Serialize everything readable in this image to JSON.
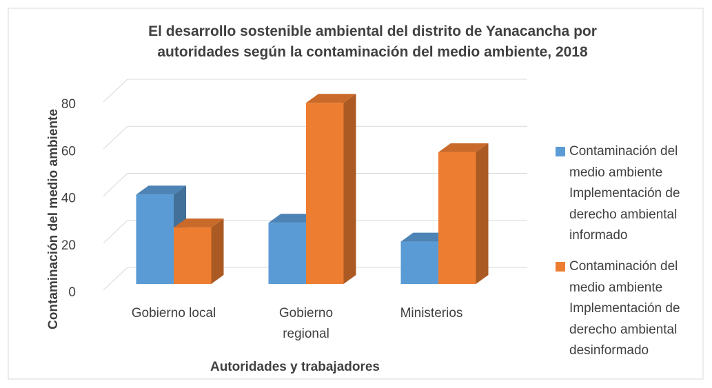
{
  "chart_data": {
    "type": "bar3d",
    "title": "El desarrollo sostenible ambiental del distrito de Yanacancha por autoridades según la contaminación del medio ambiente, 2018",
    "x_label": "Autoridades y trabajadores",
    "y_label": "Contaminación del medio ambiente",
    "categories": [
      "Gobierno local",
      "Gobierno regional",
      "Ministerios"
    ],
    "series": [
      {
        "name": "Contaminación del medio ambiente Implementación de derecho ambiental informado",
        "color": "#5b9bd5",
        "values": [
          38,
          26,
          18
        ]
      },
      {
        "name": "Contaminación del medio ambiente Implementación de derecho ambiental desinformado",
        "color": "#ed7d31",
        "values": [
          24,
          77,
          56
        ]
      }
    ],
    "ylim": [
      0,
      80
    ],
    "yticks": [
      0,
      20,
      40,
      60,
      80
    ],
    "grid": true,
    "legend": "right"
  }
}
